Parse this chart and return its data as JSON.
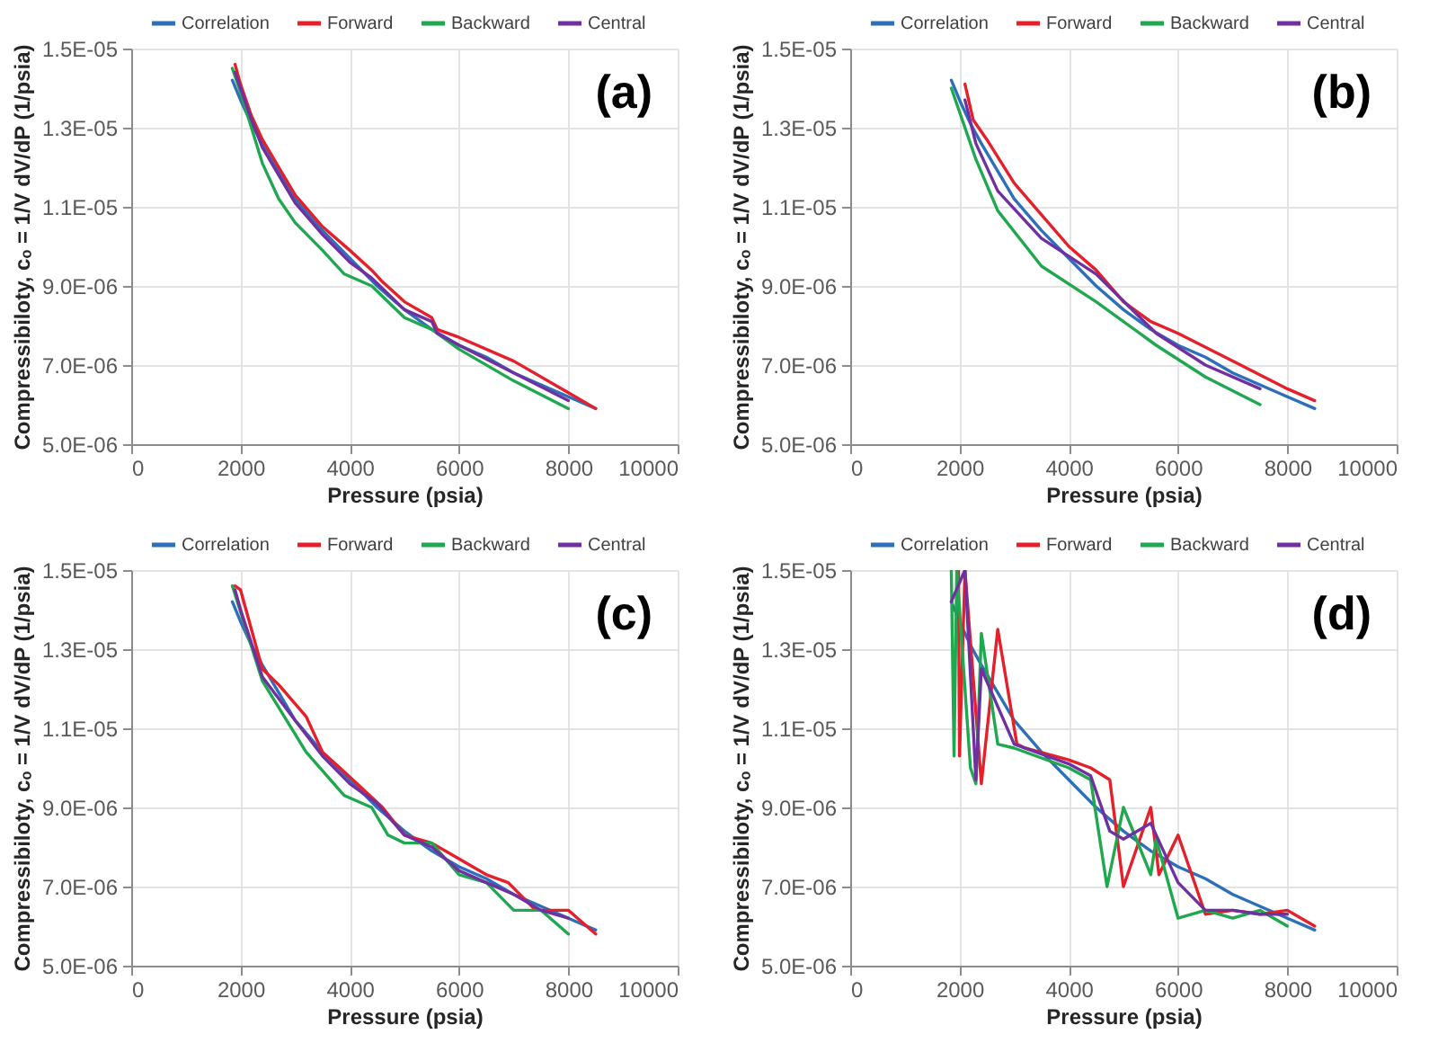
{
  "chart_data": [
    {
      "type": "line",
      "title": "(a)",
      "xlabel": "Pressure (psia)",
      "ylabel": "Compressibiloty, cₒ = 1/V dV/dP (1/psia)",
      "xlim": [
        0,
        10000
      ],
      "ylim": [
        5e-06,
        1.5e-05
      ],
      "xticks": [
        0,
        2000,
        4000,
        6000,
        8000,
        10000
      ],
      "yticks": [
        {
          "value": 5e-06,
          "label": "5.0E-06"
        },
        {
          "value": 7e-06,
          "label": "7.0E-06"
        },
        {
          "value": 9e-06,
          "label": "9.0E-06"
        },
        {
          "value": 1.1e-05,
          "label": "1.1E-05"
        },
        {
          "value": 1.3e-05,
          "label": "1.3E-05"
        },
        {
          "value": 1.5e-05,
          "label": "1.5E-05"
        }
      ],
      "grid": true,
      "legend": "top",
      "series": [
        {
          "name": "Correlation",
          "color": "#2e6fba",
          "x": [
            1850,
            2000,
            2200,
            2400,
            2700,
            3000,
            3500,
            4000,
            4500,
            5000,
            5500,
            6000,
            6500,
            7000,
            7500,
            8000,
            8500
          ],
          "values": [
            1.42e-05,
            1.37e-05,
            1.31e-05,
            1.26e-05,
            1.19e-05,
            1.12e-05,
            1.04e-05,
            9.7e-06,
            9e-06,
            8.4e-06,
            7.9e-06,
            7.5e-06,
            7.2e-06,
            6.8e-06,
            6.5e-06,
            6.2e-06,
            5.9e-06
          ]
        },
        {
          "name": "Forward",
          "color": "#e5202a",
          "x": [
            1900,
            2000,
            2200,
            2400,
            2700,
            3000,
            3500,
            4000,
            4400,
            4600,
            5000,
            5500,
            5600,
            6000,
            7000,
            8000,
            8500
          ],
          "values": [
            1.46e-05,
            1.41e-05,
            1.33e-05,
            1.27e-05,
            1.2e-05,
            1.13e-05,
            1.05e-05,
            9.9e-06,
            9.4e-06,
            9.1e-06,
            8.6e-06,
            8.2e-06,
            7.9e-06,
            7.7e-06,
            7.1e-06,
            6.3e-06,
            5.9e-06
          ]
        },
        {
          "name": "Backward",
          "color": "#1fa84f",
          "x": [
            1850,
            2000,
            2400,
            2700,
            3000,
            3500,
            3900,
            4400,
            5000,
            5500,
            6000,
            7000,
            8000
          ],
          "values": [
            1.45e-05,
            1.39e-05,
            1.21e-05,
            1.12e-05,
            1.06e-05,
            9.9e-06,
            9.3e-06,
            9e-06,
            8.2e-06,
            7.9e-06,
            7.4e-06,
            6.6e-06,
            5.9e-06
          ]
        },
        {
          "name": "Central",
          "color": "#7030a0",
          "x": [
            1900,
            2000,
            2200,
            2400,
            2700,
            3000,
            3500,
            4000,
            4400,
            5000,
            5500,
            5600,
            6000,
            7000,
            8000
          ],
          "values": [
            1.44e-05,
            1.4e-05,
            1.32e-05,
            1.25e-05,
            1.18e-05,
            1.11e-05,
            1.03e-05,
            9.6e-06,
            9.2e-06,
            8.4e-06,
            8.1e-06,
            7.8e-06,
            7.5e-06,
            6.8e-06,
            6.1e-06
          ]
        }
      ]
    },
    {
      "type": "line",
      "title": "(b)",
      "xlabel": "Pressure (psia)",
      "ylabel": "Compressibiloty, cₒ = 1/V dV/dP (1/psia)",
      "xlim": [
        0,
        10000
      ],
      "ylim": [
        5e-06,
        1.5e-05
      ],
      "xticks": [
        0,
        2000,
        4000,
        6000,
        8000,
        10000
      ],
      "yticks": [
        {
          "value": 5e-06,
          "label": "5.0E-06"
        },
        {
          "value": 7e-06,
          "label": "7.0E-06"
        },
        {
          "value": 9e-06,
          "label": "9.0E-06"
        },
        {
          "value": 1.1e-05,
          "label": "1.1E-05"
        },
        {
          "value": 1.3e-05,
          "label": "1.3E-05"
        },
        {
          "value": 1.5e-05,
          "label": "1.5E-05"
        }
      ],
      "grid": true,
      "legend": "top",
      "series": [
        {
          "name": "Correlation",
          "color": "#2e6fba",
          "x": [
            1850,
            2000,
            2200,
            2400,
            2700,
            3000,
            3500,
            4000,
            4500,
            5000,
            5500,
            6000,
            6500,
            7000,
            7500,
            8000,
            8500
          ],
          "values": [
            1.42e-05,
            1.37e-05,
            1.31e-05,
            1.26e-05,
            1.19e-05,
            1.12e-05,
            1.04e-05,
            9.7e-06,
            9e-06,
            8.4e-06,
            7.9e-06,
            7.5e-06,
            7.2e-06,
            6.8e-06,
            6.5e-06,
            6.2e-06,
            5.9e-06
          ]
        },
        {
          "name": "Forward",
          "color": "#e5202a",
          "x": [
            2100,
            2250,
            2500,
            3000,
            3500,
            4000,
            4500,
            5000,
            5500,
            6000,
            7000,
            8000,
            8500
          ],
          "values": [
            1.41e-05,
            1.32e-05,
            1.27e-05,
            1.16e-05,
            1.08e-05,
            1e-05,
            9.4e-06,
            8.6e-06,
            8.1e-06,
            7.8e-06,
            7.1e-06,
            6.4e-06,
            6.1e-06
          ]
        },
        {
          "name": "Backward",
          "color": "#1fa84f",
          "x": [
            1850,
            2300,
            2700,
            3500,
            4500,
            5600,
            6500,
            7500
          ],
          "values": [
            1.4e-05,
            1.22e-05,
            1.09e-05,
            9.5e-06,
            8.6e-06,
            7.5e-06,
            6.7e-06,
            6e-06
          ]
        },
        {
          "name": "Central",
          "color": "#7030a0",
          "x": [
            2100,
            2300,
            2700,
            3500,
            4500,
            5600,
            6500,
            7500
          ],
          "values": [
            1.37e-05,
            1.26e-05,
            1.14e-05,
            1.02e-05,
            9.3e-06,
            7.8e-06,
            7e-06,
            6.4e-06
          ]
        }
      ]
    },
    {
      "type": "line",
      "title": "(c)",
      "xlabel": "Pressure (psia)",
      "ylabel": "Compressibiloty, cₒ = 1/V dV/dP (1/psia)",
      "xlim": [
        0,
        10000
      ],
      "ylim": [
        5e-06,
        1.5e-05
      ],
      "xticks": [
        0,
        2000,
        4000,
        6000,
        8000,
        10000
      ],
      "yticks": [
        {
          "value": 5e-06,
          "label": "5.0E-06"
        },
        {
          "value": 7e-06,
          "label": "7.0E-06"
        },
        {
          "value": 9e-06,
          "label": "9.0E-06"
        },
        {
          "value": 1.1e-05,
          "label": "1.1E-05"
        },
        {
          "value": 1.3e-05,
          "label": "1.3E-05"
        },
        {
          "value": 1.5e-05,
          "label": "1.5E-05"
        }
      ],
      "grid": true,
      "legend": "top",
      "series": [
        {
          "name": "Correlation",
          "color": "#2e6fba",
          "x": [
            1850,
            2000,
            2200,
            2400,
            2700,
            3000,
            3500,
            4000,
            4500,
            5000,
            5500,
            6000,
            6500,
            7000,
            7500,
            8000,
            8500
          ],
          "values": [
            1.42e-05,
            1.37e-05,
            1.31e-05,
            1.26e-05,
            1.19e-05,
            1.12e-05,
            1.04e-05,
            9.7e-06,
            9e-06,
            8.4e-06,
            7.9e-06,
            7.5e-06,
            7.2e-06,
            6.8e-06,
            6.5e-06,
            6.2e-06,
            5.9e-06
          ]
        },
        {
          "name": "Forward",
          "color": "#e5202a",
          "x": [
            1900,
            2000,
            2400,
            2700,
            3200,
            3500,
            3900,
            4600,
            5000,
            5500,
            6000,
            6500,
            6900,
            7400,
            8000,
            8500
          ],
          "values": [
            1.46e-05,
            1.45e-05,
            1.25e-05,
            1.21e-05,
            1.13e-05,
            1.04e-05,
            9.9e-06,
            9e-06,
            8.3e-06,
            8.1e-06,
            7.7e-06,
            7.3e-06,
            7.1e-06,
            6.4e-06,
            6.4e-06,
            5.8e-06
          ]
        },
        {
          "name": "Backward",
          "color": "#1fa84f",
          "x": [
            1850,
            2400,
            3200,
            3900,
            4400,
            4700,
            5000,
            5500,
            6000,
            6500,
            7000,
            7500,
            8000
          ],
          "values": [
            1.46e-05,
            1.22e-05,
            1.04e-05,
            9.3e-06,
            9e-06,
            8.3e-06,
            8.1e-06,
            8.1e-06,
            7.3e-06,
            7.1e-06,
            6.4e-06,
            6.4e-06,
            5.8e-06
          ]
        },
        {
          "name": "Central",
          "color": "#7030a0",
          "x": [
            1900,
            2000,
            2400,
            3000,
            3500,
            4000,
            4500,
            5000,
            5500,
            6000,
            6500,
            7000,
            7500,
            8000
          ],
          "values": [
            1.45e-05,
            1.4e-05,
            1.23e-05,
            1.12e-05,
            1.03e-05,
            9.6e-06,
            9.1e-06,
            8.3e-06,
            8e-06,
            7.4e-06,
            7.1e-06,
            6.8e-06,
            6.4e-06,
            6.2e-06
          ]
        }
      ]
    },
    {
      "type": "line",
      "title": "(d)",
      "xlabel": "Pressure (psia)",
      "ylabel": "Compressibiloty, cₒ = 1/V dV/dP (1/psia)",
      "xlim": [
        0,
        10000
      ],
      "ylim": [
        5e-06,
        1.5e-05
      ],
      "xticks": [
        0,
        2000,
        4000,
        6000,
        8000,
        10000
      ],
      "yticks": [
        {
          "value": 5e-06,
          "label": "5.0E-06"
        },
        {
          "value": 7e-06,
          "label": "7.0E-06"
        },
        {
          "value": 9e-06,
          "label": "9.0E-06"
        },
        {
          "value": 1.1e-05,
          "label": "1.1E-05"
        },
        {
          "value": 1.3e-05,
          "label": "1.3E-05"
        },
        {
          "value": 1.5e-05,
          "label": "1.5E-05"
        }
      ],
      "grid": true,
      "legend": "top",
      "series": [
        {
          "name": "Correlation",
          "color": "#2e6fba",
          "x": [
            1850,
            2000,
            2200,
            2400,
            2700,
            3000,
            3500,
            4000,
            4500,
            5000,
            5500,
            6000,
            6500,
            7000,
            7500,
            8000,
            8500
          ],
          "values": [
            1.42e-05,
            1.37e-05,
            1.31e-05,
            1.26e-05,
            1.19e-05,
            1.12e-05,
            1.04e-05,
            9.7e-06,
            9e-06,
            8.4e-06,
            7.9e-06,
            7.5e-06,
            7.2e-06,
            6.8e-06,
            6.5e-06,
            6.2e-06,
            5.9e-06
          ]
        },
        {
          "name": "Forward",
          "color": "#e5202a",
          "x": [
            1980,
            2000,
            2100,
            2400,
            2700,
            3050,
            3200,
            4000,
            4400,
            4750,
            5000,
            5500,
            5650,
            6000,
            6500,
            7000,
            7500,
            8000,
            8500
          ],
          "values": [
            1.5e-05,
            1.03e-05,
            1.5e-05,
            9.6e-06,
            1.35e-05,
            1.06e-05,
            1.05e-05,
            1.02e-05,
            1e-05,
            9.7e-06,
            7e-06,
            9e-06,
            7.3e-06,
            8.3e-06,
            6.3e-06,
            6.4e-06,
            6.3e-06,
            6.4e-06,
            6e-06
          ]
        },
        {
          "name": "Backward",
          "color": "#1fa84f",
          "x": [
            1850,
            1900,
            1950,
            2200,
            2300,
            2400,
            2700,
            3000,
            4000,
            4400,
            4700,
            5000,
            5500,
            5600,
            6000,
            6500,
            7000,
            7500,
            8000
          ],
          "values": [
            1.5e-05,
            1.03e-05,
            1.5e-05,
            1e-05,
            9.6e-06,
            1.34e-05,
            1.06e-05,
            1.05e-05,
            1e-05,
            9.7e-06,
            7e-06,
            9e-06,
            7.3e-06,
            8.2e-06,
            6.2e-06,
            6.4e-06,
            6.2e-06,
            6.4e-06,
            6e-06
          ]
        },
        {
          "name": "Central",
          "color": "#7030a0",
          "x": [
            1850,
            2100,
            2300,
            2400,
            3000,
            4000,
            4400,
            4750,
            5000,
            5500,
            6000,
            6500,
            7000,
            7500,
            8000
          ],
          "values": [
            1.42e-05,
            1.5e-05,
            9.7e-06,
            1.25e-05,
            1.06e-05,
            1.01e-05,
            9.8e-06,
            8.4e-06,
            8.2e-06,
            8.6e-06,
            7.1e-06,
            6.4e-06,
            6.4e-06,
            6.3e-06,
            6.3e-06
          ]
        }
      ]
    }
  ]
}
